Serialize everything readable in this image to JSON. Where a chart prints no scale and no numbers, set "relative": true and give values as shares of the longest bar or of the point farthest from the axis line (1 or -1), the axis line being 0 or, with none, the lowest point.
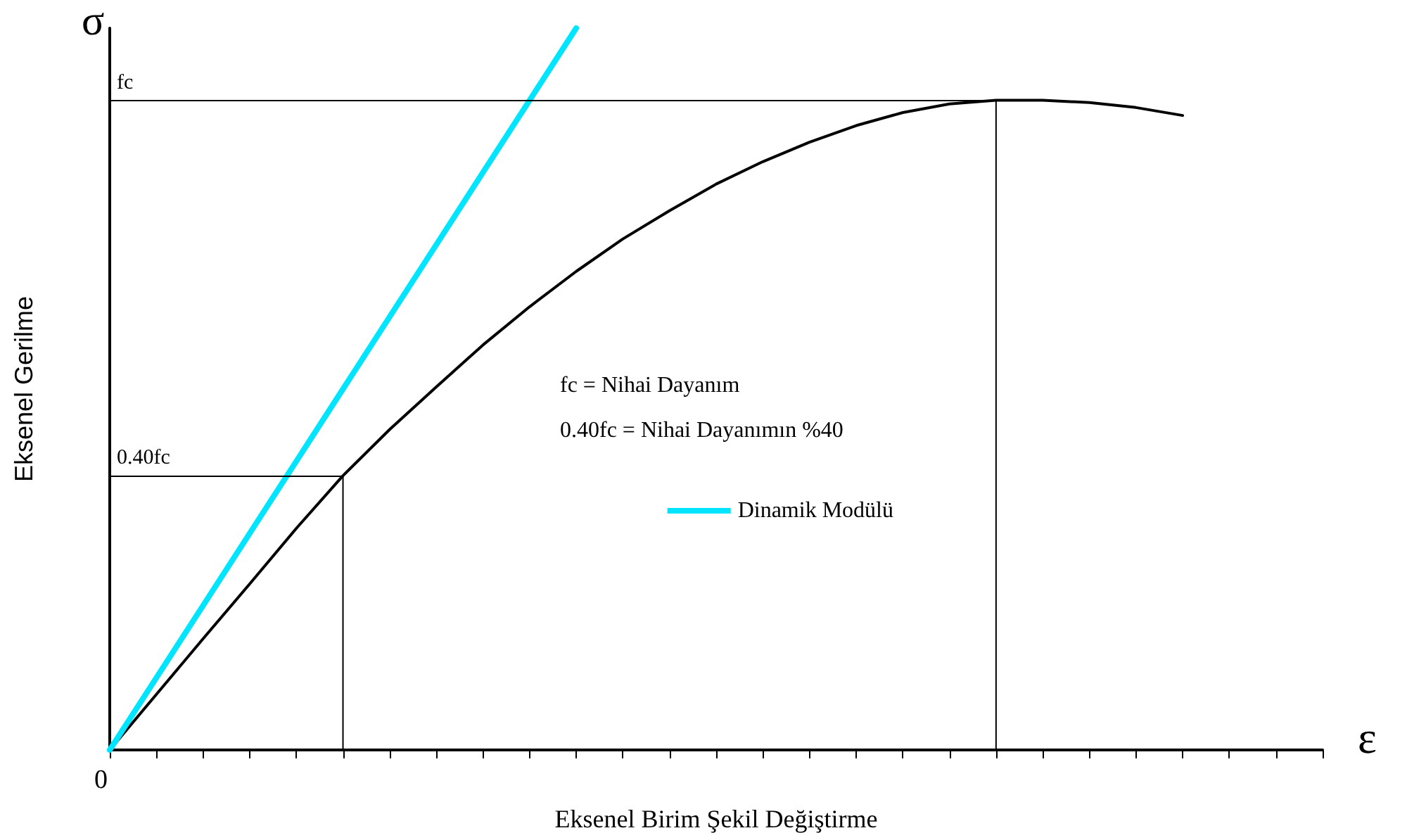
{
  "chart_data": {
    "type": "line",
    "relative": true,
    "xlabel": "Eksenel Birim Şekil Değiştirme",
    "ylabel": "Eksenel Gerilme",
    "categories": [
      null,
      null,
      null,
      null,
      null,
      null,
      null,
      null,
      null,
      null,
      null,
      null,
      null,
      null,
      null,
      null,
      null,
      null,
      null,
      null,
      null,
      null,
      null,
      null,
      null,
      null,
      null
    ],
    "series": [
      {
        "color": "#000000",
        "values": [
          0,
          0.077,
          0.154,
          0.23,
          0.307,
          0.38,
          0.444,
          0.503,
          0.561,
          0.614,
          0.663,
          0.708,
          0.747,
          0.784,
          0.815,
          0.842,
          0.865,
          0.883,
          0.895,
          0.9,
          0.9,
          0.897,
          0.89,
          0.879,
          null,
          null,
          null
        ]
      },
      {
        "name": "Dinamik Modülü",
        "color": "#00e5ff",
        "values": [
          0,
          0.1,
          0.2,
          0.3,
          0.4,
          0.5,
          0.6,
          0.7,
          0.8,
          0.9,
          1,
          null,
          null,
          null,
          null,
          null,
          null,
          null,
          null,
          null,
          null,
          null,
          null,
          null,
          null,
          null,
          null
        ]
      }
    ],
    "ref_lines": [
      {
        "axis": "y",
        "value": 0.9,
        "label": "fc",
        "color": "#000000"
      },
      {
        "axis": "y",
        "value": 0.38,
        "label": "0.40fc",
        "color": "#000000"
      }
    ],
    "annotations": [
      "σ",
      "ε",
      "0",
      "fc = Nihai Dayanım",
      "0.40fc = Nihai Dayanımın %40"
    ],
    "legend": "right",
    "grid": false,
    "marker": "none",
    "line_style": "solid"
  }
}
